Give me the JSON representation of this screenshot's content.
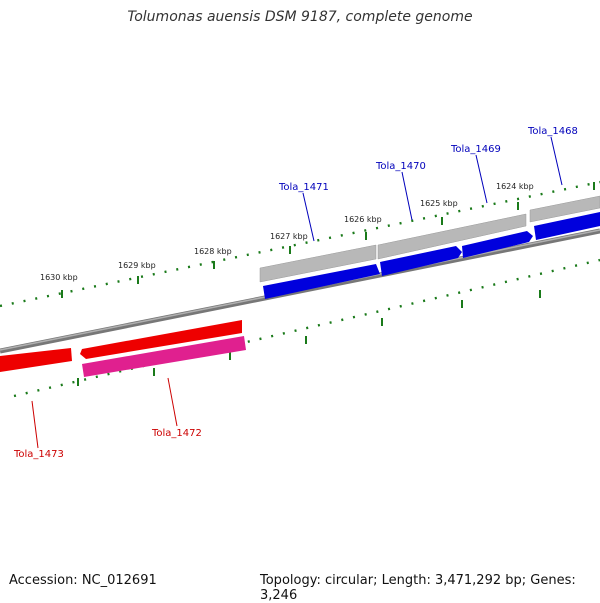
{
  "title": "Tolumonas auensis DSM 9187, complete genome",
  "accession": "Accession: NC_012691",
  "summary": "Topology: circular; Length: 3,471,292 bp; Genes: 3,246",
  "ticks": [
    {
      "label": "1624 kbp"
    },
    {
      "label": "1625 kbp"
    },
    {
      "label": "1626 kbp"
    },
    {
      "label": "1627 kbp"
    },
    {
      "label": "1628 kbp"
    },
    {
      "label": "1629 kbp"
    },
    {
      "label": "1630 kbp"
    }
  ],
  "genes": [
    {
      "name": "Tola_1468",
      "strand": "forward"
    },
    {
      "name": "Tola_1469",
      "strand": "forward"
    },
    {
      "name": "Tola_1470",
      "strand": "forward"
    },
    {
      "name": "Tola_1471",
      "strand": "forward"
    },
    {
      "name": "Tola_1472",
      "strand": "reverse"
    },
    {
      "name": "Tola_1473",
      "strand": "reverse"
    }
  ],
  "colors": {
    "forward_cds": "#0000dd",
    "reverse_cds": "#ee0000",
    "reverse_feature": "#e0208f",
    "forward_feature": "#b8b8b8",
    "backbone": "#777777",
    "tick": "#1a7a1a",
    "forward_label": "#0000bb",
    "reverse_label": "#cc0000"
  }
}
